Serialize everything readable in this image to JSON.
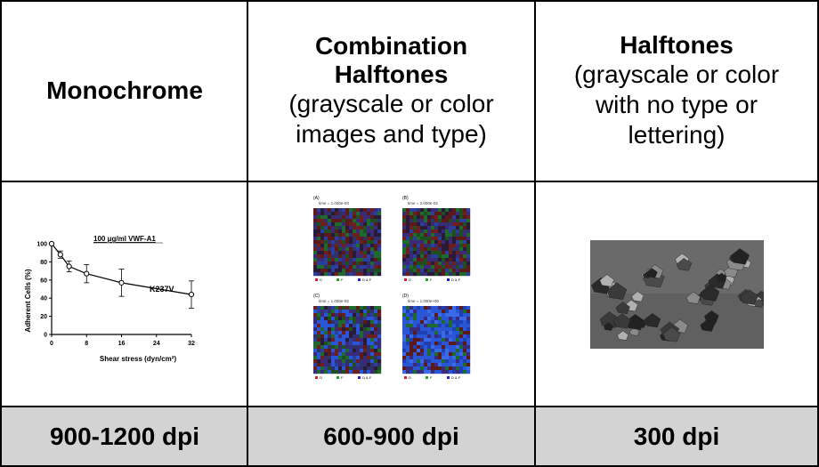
{
  "table": {
    "headers": [
      {
        "title": "Monochrome",
        "subtitle": ""
      },
      {
        "title": "Combination Halftones",
        "subtitle": "(grayscale or color images and type)"
      },
      {
        "title": "Halftones",
        "subtitle": "(grayscale or color with no type or lettering)"
      }
    ],
    "resolutions": [
      "900-1200 dpi",
      "600-900 dpi",
      "300 dpi"
    ]
  },
  "monochrome_chart": {
    "annotation": "100 μg/ml VWF-A1",
    "mutant_label": "K237V",
    "xlabel": "Shear stress (dyn/cm²)",
    "ylabel": "Adherent Cells (%)",
    "xticks": [
      "0",
      "8",
      "16",
      "24",
      "32"
    ],
    "yticks": [
      "0",
      "20",
      "40",
      "60",
      "80",
      "100"
    ]
  },
  "halftone_panels": [
    {
      "letter": "(A)",
      "time": "time = 1.000e-03",
      "legend": [
        "D",
        "F",
        "D & F"
      ]
    },
    {
      "letter": "(B)",
      "time": "time = 2.000e-02",
      "legend": [
        "D",
        "F",
        "D & F"
      ]
    },
    {
      "letter": "(C)",
      "time": "time = 1.000e-02",
      "legend": [
        "D",
        "F",
        "D & F"
      ]
    },
    {
      "letter": "(D)",
      "time": "time = 1.000e+00",
      "legend": [
        "D",
        "F",
        "D & F"
      ]
    }
  ],
  "chart_data": {
    "type": "line",
    "x": [
      0,
      2,
      4,
      8,
      16,
      32
    ],
    "series": [
      {
        "values": [
          100,
          88,
          75,
          67,
          57,
          44
        ],
        "errors": [
          0,
          4,
          6,
          10,
          15,
          15
        ]
      }
    ],
    "xlim": [
      0,
      32
    ],
    "ylim": [
      0,
      100
    ],
    "xlabel": "Shear stress (dyn/cm²)",
    "ylabel": "Adherent Cells (%)"
  },
  "colors": {
    "footer_bg": "#d3d3d3",
    "border": "#000000"
  }
}
